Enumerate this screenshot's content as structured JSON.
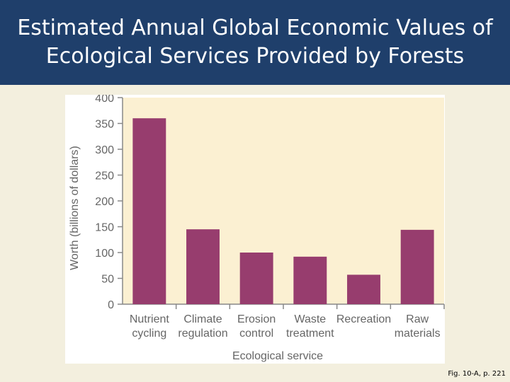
{
  "slide": {
    "title": "Estimated Annual Global Economic Values of Ecological Services Provided by Forests",
    "caption": "Fig. 10-A, p. 221"
  },
  "colors": {
    "title_bg": "#1f3f6b",
    "slide_bg": "#f3efde",
    "plot_bg": "#fbf0d2",
    "bar": "#973d6e",
    "axis": "#888888",
    "text": "#666666"
  },
  "chart_data": {
    "type": "bar",
    "categories": [
      [
        "Nutrient",
        "cycling"
      ],
      [
        "Climate",
        "regulation"
      ],
      [
        "Erosion",
        "control"
      ],
      [
        "Waste",
        "treatment"
      ],
      [
        "Recreation"
      ],
      [
        "Raw",
        "materials"
      ]
    ],
    "values": [
      360,
      145,
      100,
      92,
      57,
      144
    ],
    "xlabel": "Ecological service",
    "ylabel": "Worth (billions of dollars)",
    "ylim": [
      0,
      400
    ],
    "yticks": [
      0,
      50,
      100,
      150,
      200,
      250,
      300,
      350,
      400
    ],
    "grid": false
  }
}
